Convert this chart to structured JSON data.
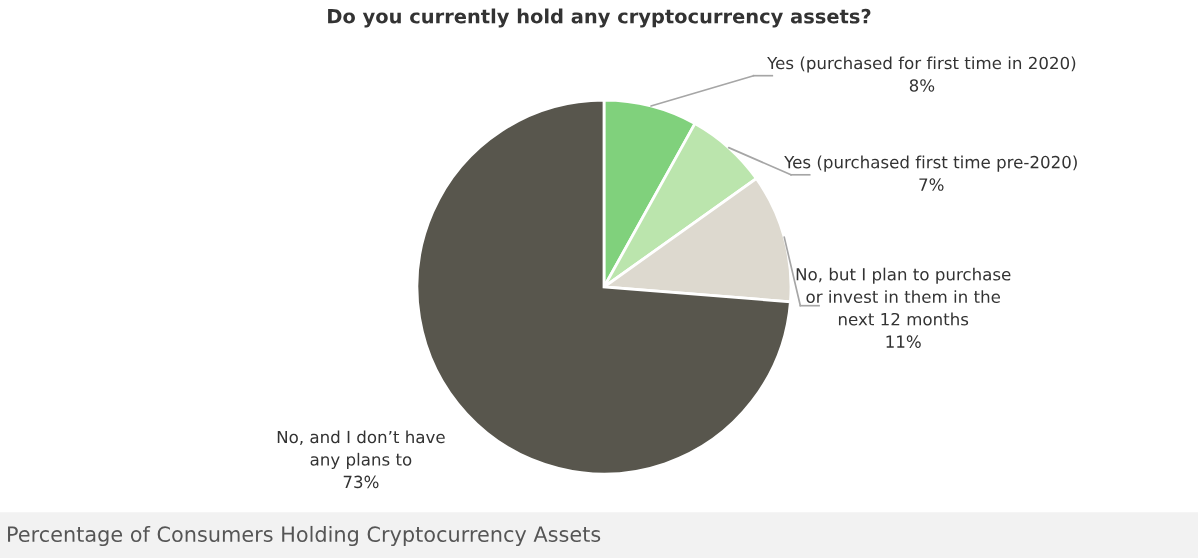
{
  "chart_data": {
    "type": "pie",
    "title": "Do you currently hold any cryptocurrency assets?",
    "categories": [
      "Yes (purchased for first time in 2020)",
      "Yes (purchased first time pre-2020)",
      "No, but I plan to purchase\nor invest in them in the\nnext 12 months",
      "No, and I don’t have\nany plans to"
    ],
    "values": [
      8,
      7,
      11,
      73
    ],
    "value_labels": [
      "8%",
      "7%",
      "11%",
      "73%"
    ],
    "colors": [
      "#80d17c",
      "#bbe5ad",
      "#ddd9cf",
      "#58564d"
    ],
    "legend": false,
    "annotations": [
      "Percentage of Consumers Holding Cryptocurrency Assets"
    ]
  }
}
